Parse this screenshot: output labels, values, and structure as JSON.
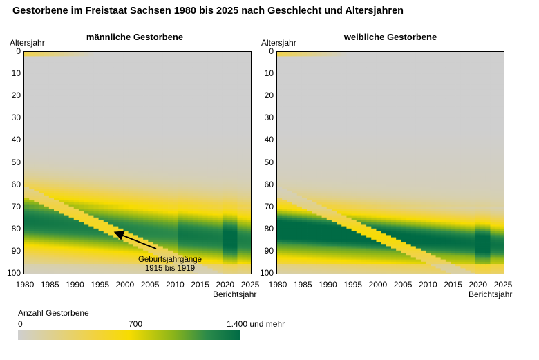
{
  "title": "Gestorbene im Freistaat Sachsen 1980 bis 2025 nach Geschlecht und Altersjahren",
  "colors": {
    "background_cell": "#cfcfcf",
    "mid": "#f7dc00",
    "high": "#006b45"
  },
  "panels": [
    {
      "title": "männliche Gestorbene",
      "y_axis_label": "Altersjahr",
      "x_axis_label": "Berichtsjahr"
    },
    {
      "title": "weibliche Gestorbene",
      "y_axis_label": "Altersjahr",
      "x_axis_label": "Berichtsjahr"
    }
  ],
  "annotation": {
    "line1": "Geburtsjahrgänge",
    "line2": "1915 bis 1919"
  },
  "legend": {
    "title": "Anzahl Gestorbene",
    "labels": [
      "0",
      "700",
      "1.400 und mehr"
    ]
  },
  "chart_data": [
    {
      "type": "heatmap",
      "title": "männliche Gestorbene",
      "xlabel": "Berichtsjahr",
      "ylabel": "Altersjahr",
      "x_ticks": [
        "1980",
        "1985",
        "1990",
        "1995",
        "2000",
        "2005",
        "2010",
        "2015",
        "2020",
        "2025"
      ],
      "y_ticks": [
        "0",
        "10",
        "20",
        "30",
        "40",
        "50",
        "60",
        "70",
        "80",
        "90",
        "100"
      ],
      "xlim": [
        1980,
        2025
      ],
      "ylim": [
        0,
        100
      ],
      "color_scale": [
        0,
        700,
        1400
      ]
    },
    {
      "type": "heatmap",
      "title": "weibliche Gestorbene",
      "xlabel": "Berichtsjahr",
      "ylabel": "Altersjahr",
      "x_ticks": [
        "1980",
        "1985",
        "1990",
        "1995",
        "2000",
        "2005",
        "2010",
        "2015",
        "2020",
        "2025"
      ],
      "y_ticks": [
        "0",
        "10",
        "20",
        "30",
        "40",
        "50",
        "60",
        "70",
        "80",
        "90",
        "100"
      ],
      "xlim": [
        1980,
        2025
      ],
      "ylim": [
        0,
        100
      ],
      "color_scale": [
        0,
        700,
        1400
      ]
    }
  ]
}
